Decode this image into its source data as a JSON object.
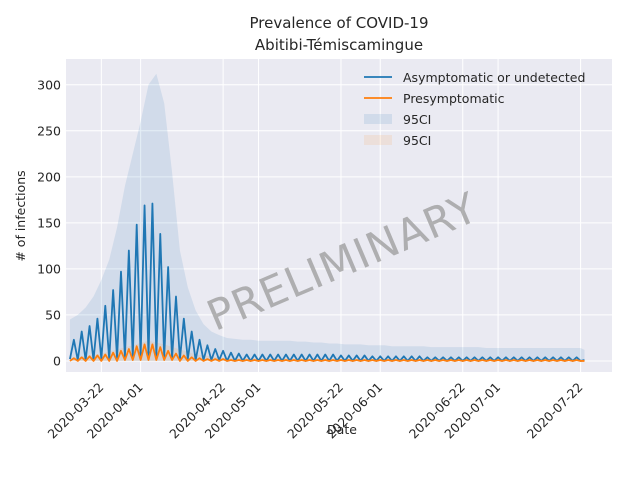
{
  "chart_data": {
    "type": "line",
    "title": "Prevalence of COVID-19",
    "subtitle": "Abitibi-Témiscamingue",
    "xlabel": "Date",
    "ylabel": "# of infections",
    "x_type": "date",
    "xlim": [
      "2020-03-13",
      "2020-07-30"
    ],
    "ylim": [
      -12,
      328
    ],
    "grid": true,
    "legend_position": "top-right",
    "x_tick_labels": [
      "2020-03-22",
      "2020-04-01",
      "2020-04-22",
      "2020-05-01",
      "2020-05-22",
      "2020-06-01",
      "2020-06-22",
      "2020-07-01",
      "2020-07-22"
    ],
    "y_ticks": [
      0,
      50,
      100,
      150,
      200,
      250,
      300
    ],
    "watermark": "PRELIMINARY",
    "series": [
      {
        "name": "Asymptomatic or undetected",
        "color": "#1f77b4",
        "x": [
          "2020-03-14",
          "2020-03-15",
          "2020-03-16",
          "2020-03-17",
          "2020-03-18",
          "2020-03-19",
          "2020-03-20",
          "2020-03-21",
          "2020-03-22",
          "2020-03-23",
          "2020-03-24",
          "2020-03-25",
          "2020-03-26",
          "2020-03-27",
          "2020-03-28",
          "2020-03-29",
          "2020-03-30",
          "2020-03-31",
          "2020-04-01",
          "2020-04-02",
          "2020-04-03",
          "2020-04-04",
          "2020-04-05",
          "2020-04-06",
          "2020-04-07",
          "2020-04-08",
          "2020-04-09",
          "2020-04-10",
          "2020-04-11",
          "2020-04-12",
          "2020-04-13",
          "2020-04-14",
          "2020-04-15",
          "2020-04-16",
          "2020-04-17",
          "2020-04-18",
          "2020-04-19",
          "2020-04-20",
          "2020-04-21",
          "2020-04-22",
          "2020-04-23",
          "2020-04-24",
          "2020-04-25",
          "2020-04-26",
          "2020-04-27",
          "2020-04-28",
          "2020-04-29",
          "2020-04-30",
          "2020-05-01",
          "2020-05-02",
          "2020-05-03",
          "2020-05-04",
          "2020-05-05",
          "2020-05-06",
          "2020-05-07",
          "2020-05-08",
          "2020-05-09",
          "2020-05-10",
          "2020-05-11",
          "2020-05-12",
          "2020-05-13",
          "2020-05-14",
          "2020-05-15",
          "2020-05-16",
          "2020-05-17",
          "2020-05-18",
          "2020-05-19",
          "2020-05-20",
          "2020-05-21",
          "2020-05-22",
          "2020-05-23",
          "2020-05-24",
          "2020-05-25",
          "2020-05-26",
          "2020-05-27",
          "2020-05-28",
          "2020-05-29",
          "2020-05-30",
          "2020-05-31",
          "2020-06-01",
          "2020-06-02",
          "2020-06-03",
          "2020-06-04",
          "2020-06-05",
          "2020-06-06",
          "2020-06-07",
          "2020-06-08",
          "2020-06-09",
          "2020-06-10",
          "2020-06-11",
          "2020-06-12",
          "2020-06-13",
          "2020-06-14",
          "2020-06-15",
          "2020-06-16",
          "2020-06-17",
          "2020-06-18",
          "2020-06-19",
          "2020-06-20",
          "2020-06-21",
          "2020-06-22",
          "2020-06-23",
          "2020-06-24",
          "2020-06-25",
          "2020-06-26",
          "2020-06-27",
          "2020-06-28",
          "2020-06-29",
          "2020-06-30",
          "2020-07-01",
          "2020-07-02",
          "2020-07-03",
          "2020-07-04",
          "2020-07-05",
          "2020-07-06",
          "2020-07-07",
          "2020-07-08",
          "2020-07-09",
          "2020-07-10",
          "2020-07-11",
          "2020-07-12",
          "2020-07-13",
          "2020-07-14",
          "2020-07-15",
          "2020-07-16",
          "2020-07-17",
          "2020-07-18",
          "2020-07-19",
          "2020-07-20",
          "2020-07-21",
          "2020-07-22",
          "2020-07-23"
        ],
        "y": [
          2,
          23,
          1,
          32,
          1,
          38,
          1,
          46,
          2,
          60,
          2,
          77,
          3,
          97,
          4,
          120,
          4,
          148,
          5,
          169,
          5,
          171,
          5,
          138,
          4,
          102,
          3,
          70,
          2,
          46,
          2,
          32,
          1,
          23,
          1,
          17,
          1,
          13,
          1,
          11,
          0,
          9,
          0,
          8,
          0,
          7,
          0,
          7,
          0,
          7,
          0,
          7,
          0,
          7,
          0,
          7,
          0,
          7,
          0,
          7,
          0,
          7,
          0,
          7,
          0,
          7,
          0,
          7,
          0,
          6,
          0,
          6,
          0,
          6,
          0,
          6,
          0,
          5,
          0,
          5,
          0,
          5,
          0,
          5,
          0,
          5,
          0,
          5,
          0,
          5,
          0,
          4,
          0,
          4,
          0,
          4,
          0,
          4,
          0,
          4,
          0,
          4,
          0,
          4,
          0,
          4,
          0,
          4,
          0,
          4,
          0,
          4,
          0,
          4,
          0,
          4,
          0,
          4,
          0,
          4,
          0,
          4,
          0,
          4,
          0,
          4,
          0,
          4,
          0,
          4,
          0,
          1
        ]
      },
      {
        "name": "Presymptomatic",
        "color": "#ff7f0e",
        "x": [
          "2020-03-14",
          "2020-03-15",
          "2020-03-16",
          "2020-03-17",
          "2020-03-18",
          "2020-03-19",
          "2020-03-20",
          "2020-03-21",
          "2020-03-22",
          "2020-03-23",
          "2020-03-24",
          "2020-03-25",
          "2020-03-26",
          "2020-03-27",
          "2020-03-28",
          "2020-03-29",
          "2020-03-30",
          "2020-03-31",
          "2020-04-01",
          "2020-04-02",
          "2020-04-03",
          "2020-04-04",
          "2020-04-05",
          "2020-04-06",
          "2020-04-07",
          "2020-04-08",
          "2020-04-09",
          "2020-04-10",
          "2020-04-11",
          "2020-04-12",
          "2020-04-13",
          "2020-04-14",
          "2020-04-15",
          "2020-04-16",
          "2020-04-17",
          "2020-04-18",
          "2020-04-19",
          "2020-04-20",
          "2020-04-21",
          "2020-04-22",
          "2020-04-23",
          "2020-04-24",
          "2020-04-25",
          "2020-04-26",
          "2020-04-27",
          "2020-04-28",
          "2020-04-29",
          "2020-04-30",
          "2020-05-01",
          "2020-05-02",
          "2020-05-03",
          "2020-05-04",
          "2020-05-05",
          "2020-05-06",
          "2020-05-07",
          "2020-05-08",
          "2020-05-09",
          "2020-05-10",
          "2020-05-11",
          "2020-05-12",
          "2020-05-13",
          "2020-05-14",
          "2020-05-15",
          "2020-05-16",
          "2020-05-17",
          "2020-05-18",
          "2020-05-19",
          "2020-05-20",
          "2020-05-21",
          "2020-05-22",
          "2020-05-23",
          "2020-05-24",
          "2020-05-25",
          "2020-05-26",
          "2020-05-27",
          "2020-05-28",
          "2020-05-29",
          "2020-05-30",
          "2020-05-31",
          "2020-06-01",
          "2020-06-02",
          "2020-06-03",
          "2020-06-04",
          "2020-06-05",
          "2020-06-06",
          "2020-06-07",
          "2020-06-08",
          "2020-06-09",
          "2020-06-10",
          "2020-06-11",
          "2020-06-12",
          "2020-06-13",
          "2020-06-14",
          "2020-06-15",
          "2020-06-16",
          "2020-06-17",
          "2020-06-18",
          "2020-06-19",
          "2020-06-20",
          "2020-06-21",
          "2020-06-22",
          "2020-06-23",
          "2020-06-24",
          "2020-06-25",
          "2020-06-26",
          "2020-06-27",
          "2020-06-28",
          "2020-06-29",
          "2020-06-30",
          "2020-07-01",
          "2020-07-02",
          "2020-07-03",
          "2020-07-04",
          "2020-07-05",
          "2020-07-06",
          "2020-07-07",
          "2020-07-08",
          "2020-07-09",
          "2020-07-10",
          "2020-07-11",
          "2020-07-12",
          "2020-07-13",
          "2020-07-14",
          "2020-07-15",
          "2020-07-16",
          "2020-07-17",
          "2020-07-18",
          "2020-07-19",
          "2020-07-20",
          "2020-07-21",
          "2020-07-22",
          "2020-07-23"
        ],
        "y": [
          0,
          3,
          0,
          4,
          0,
          5,
          0,
          6,
          0,
          7,
          0,
          9,
          0,
          11,
          1,
          13,
          1,
          16,
          1,
          18,
          1,
          18,
          1,
          15,
          1,
          11,
          1,
          8,
          0,
          6,
          0,
          4,
          0,
          3,
          0,
          2,
          0,
          2,
          0,
          2,
          0,
          1,
          0,
          1,
          0,
          1,
          0,
          1,
          0,
          1,
          0,
          1,
          0,
          1,
          0,
          1,
          0,
          1,
          0,
          1,
          0,
          1,
          0,
          1,
          0,
          1,
          0,
          1,
          0,
          1,
          0,
          1,
          0,
          1,
          0,
          1,
          0,
          1,
          0,
          1,
          0,
          1,
          0,
          1,
          0,
          1,
          0,
          1,
          0,
          1,
          0,
          1,
          0,
          1,
          0,
          1,
          0,
          1,
          0,
          1,
          0,
          1,
          0,
          1,
          0,
          1,
          0,
          1,
          0,
          1,
          0,
          1,
          0,
          1,
          0,
          1,
          0,
          1,
          0,
          1,
          0,
          1,
          0,
          1,
          0,
          1,
          0,
          1,
          0,
          1,
          0,
          0
        ]
      }
    ],
    "bands": [
      {
        "name": "95CI",
        "series": "Asymptomatic or undetected",
        "color": "#1f77b4",
        "opacity": 0.12,
        "x": [
          "2020-03-14",
          "2020-03-16",
          "2020-03-18",
          "2020-03-20",
          "2020-03-22",
          "2020-03-24",
          "2020-03-26",
          "2020-03-28",
          "2020-03-30",
          "2020-04-01",
          "2020-04-03",
          "2020-04-05",
          "2020-04-07",
          "2020-04-09",
          "2020-04-11",
          "2020-04-13",
          "2020-04-15",
          "2020-04-17",
          "2020-04-19",
          "2020-04-21",
          "2020-04-23",
          "2020-04-25",
          "2020-04-27",
          "2020-04-29",
          "2020-05-01",
          "2020-05-03",
          "2020-05-05",
          "2020-05-07",
          "2020-05-09",
          "2020-05-11",
          "2020-05-13",
          "2020-05-15",
          "2020-05-17",
          "2020-05-19",
          "2020-05-21",
          "2020-05-23",
          "2020-05-25",
          "2020-05-27",
          "2020-05-29",
          "2020-05-31",
          "2020-06-02",
          "2020-06-04",
          "2020-06-06",
          "2020-06-08",
          "2020-06-10",
          "2020-06-12",
          "2020-06-14",
          "2020-06-16",
          "2020-06-18",
          "2020-06-20",
          "2020-06-22",
          "2020-06-24",
          "2020-06-26",
          "2020-06-28",
          "2020-06-30",
          "2020-07-02",
          "2020-07-04",
          "2020-07-06",
          "2020-07-08",
          "2020-07-10",
          "2020-07-12",
          "2020-07-14",
          "2020-07-16",
          "2020-07-18",
          "2020-07-20",
          "2020-07-22",
          "2020-07-23"
        ],
        "upper": [
          45,
          50,
          58,
          70,
          88,
          110,
          145,
          190,
          225,
          260,
          300,
          312,
          280,
          205,
          120,
          80,
          55,
          40,
          32,
          28,
          25,
          24,
          23,
          23,
          22,
          22,
          22,
          22,
          22,
          21,
          21,
          20,
          20,
          19,
          19,
          18,
          18,
          18,
          17,
          17,
          17,
          16,
          16,
          16,
          16,
          16,
          15,
          15,
          15,
          15,
          15,
          15,
          15,
          14,
          14,
          14,
          14,
          14,
          14,
          14,
          14,
          14,
          14,
          14,
          14,
          14,
          12
        ],
        "lower": [
          0,
          0,
          0,
          0,
          0,
          0,
          0,
          0,
          0,
          0,
          0,
          0,
          0,
          0,
          0,
          0,
          0,
          0,
          0,
          0,
          0,
          0,
          0,
          0,
          0,
          0,
          0,
          0,
          0,
          0,
          0,
          0,
          0,
          0,
          0,
          0,
          0,
          0,
          0,
          0,
          0,
          0,
          0,
          0,
          0,
          0,
          0,
          0,
          0,
          0,
          0,
          0,
          0,
          0,
          0,
          0,
          0,
          0,
          0,
          0,
          0,
          0,
          0,
          0,
          0,
          0,
          0
        ]
      },
      {
        "name": "95CI",
        "series": "Presymptomatic",
        "color": "#ff7f0e",
        "opacity": 0.1,
        "x": [
          "2020-03-14",
          "2020-03-22",
          "2020-03-30",
          "2020-04-03",
          "2020-04-07",
          "2020-04-15",
          "2020-04-23",
          "2020-05-23",
          "2020-07-23"
        ],
        "upper": [
          3,
          8,
          17,
          22,
          18,
          7,
          3,
          2,
          1
        ],
        "lower": [
          0,
          0,
          0,
          0,
          0,
          0,
          0,
          0,
          0
        ]
      }
    ]
  }
}
